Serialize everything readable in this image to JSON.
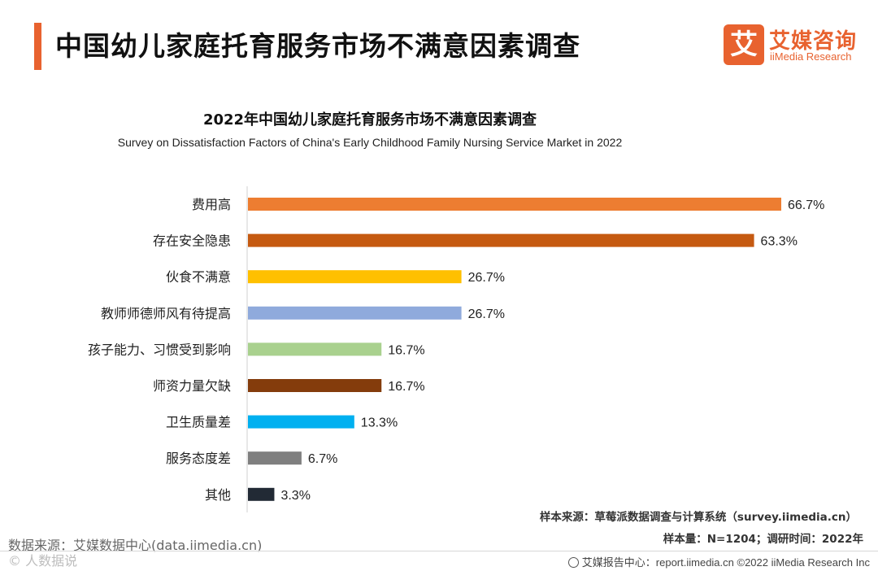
{
  "header": {
    "title": "中国幼儿家庭托育服务市场不满意因素调查",
    "accent_color": "#e8622f"
  },
  "logo": {
    "mark": "艾",
    "name_cn": "艾媒咨询",
    "name_en": "iiMedia Research"
  },
  "chart_data": {
    "type": "bar",
    "orientation": "horizontal",
    "title": "2022年中国幼儿家庭托育服务市场不满意因素调查",
    "subtitle": "Survey on Dissatisfaction Factors of China's Early Childhood Family Nursing Service Market in 2022",
    "unit": "%",
    "xlim": [
      0,
      70
    ],
    "grid": false,
    "categories": [
      "费用高",
      "存在安全隐患",
      "伙食不满意",
      "教师师德师风有待提高",
      "孩子能力、习惯受到影响",
      "师资力量欠缺",
      "卫生质量差",
      "服务态度差",
      "其他"
    ],
    "values": [
      66.7,
      63.3,
      26.7,
      26.7,
      16.7,
      16.7,
      13.3,
      6.7,
      3.3
    ],
    "value_labels": [
      "66.7%",
      "63.3%",
      "26.7%",
      "26.7%",
      "16.7%",
      "16.7%",
      "13.3%",
      "6.7%",
      "3.3%"
    ],
    "colors": [
      "#ed7d31",
      "#c55a11",
      "#ffc000",
      "#8faadc",
      "#a9d18e",
      "#843c0c",
      "#00b0f0",
      "#7f7f7f",
      "#222a35"
    ]
  },
  "notes": {
    "sample_source": "样本来源：草莓派数据调查与计算系统（survey.iimedia.cn）",
    "sample_size": "样本量：N=1204；调研时间：2022年"
  },
  "footer": {
    "data_source": "数据来源：艾媒数据中心(data.iimedia.cn)",
    "watermark": "© 人数据说",
    "report_center": "艾媒报告中心：report.iimedia.cn   ©2022  iiMedia Research  Inc"
  }
}
